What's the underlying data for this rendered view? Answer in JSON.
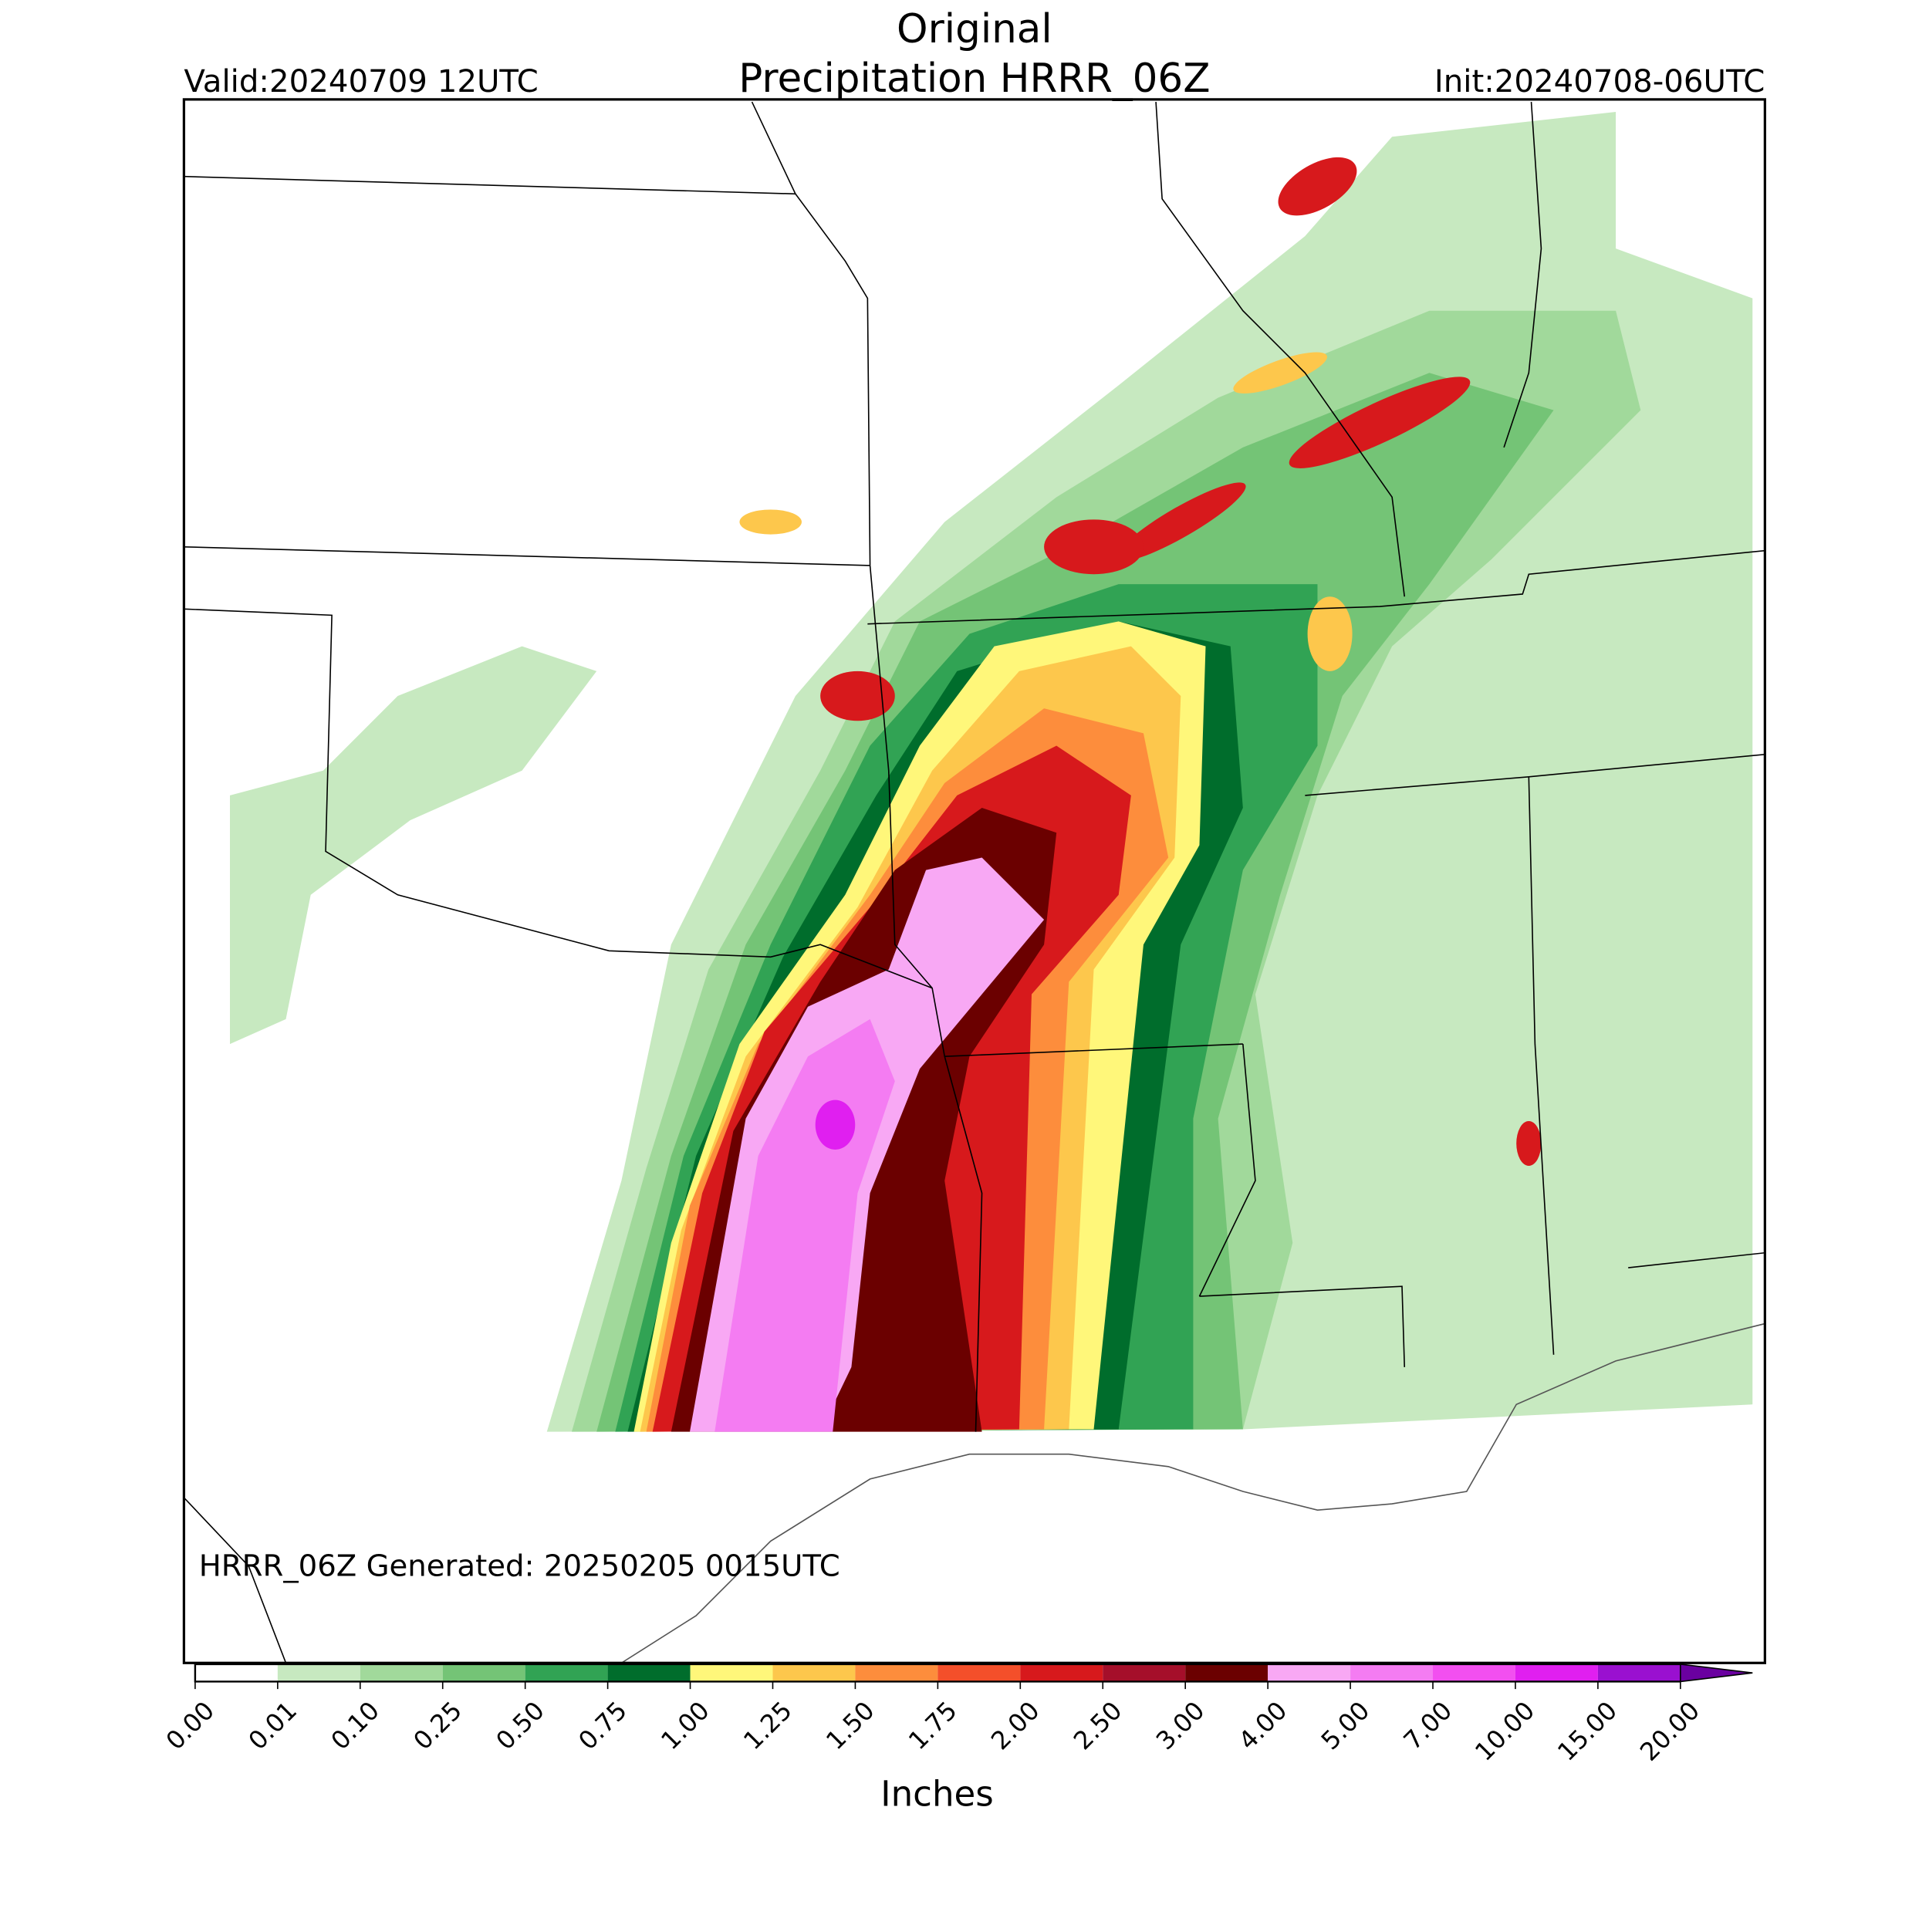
{
  "title": "Original",
  "subtitle": "Precipitation HRRR_06Z",
  "valid": "Valid:20240709 12UTC",
  "init": "Init:20240708-06UTC",
  "footer": "HRRR_06Z Generated: 20250205 0015UTC",
  "colorbar": {
    "label": "Inches",
    "ticks": [
      {
        "value": 0,
        "label": "0.00"
      },
      {
        "value": 0.01,
        "label": "0.01"
      },
      {
        "value": 0.1,
        "label": "0.10"
      },
      {
        "value": 0.25,
        "label": "0.25"
      },
      {
        "value": 0.5,
        "label": "0.50"
      },
      {
        "value": 0.75,
        "label": "0.75"
      },
      {
        "value": 1,
        "label": "1.00"
      },
      {
        "value": 1.25,
        "label": "1.25"
      },
      {
        "value": 1.5,
        "label": "1.50"
      },
      {
        "value": 1.75,
        "label": "1.75"
      },
      {
        "value": 2,
        "label": "2.00"
      },
      {
        "value": 2.5,
        "label": "2.50"
      },
      {
        "value": 3,
        "label": "3.00"
      },
      {
        "value": 4,
        "label": "4.00"
      },
      {
        "value": 5,
        "label": "5.00"
      },
      {
        "value": 7,
        "label": "7.00"
      },
      {
        "value": 10,
        "label": "10.00"
      },
      {
        "value": 15,
        "label": "15.00"
      },
      {
        "value": 20,
        "label": "20.00"
      }
    ],
    "colors": [
      "#ffffff",
      "#c7e9c0",
      "#a1d99b",
      "#74c476",
      "#31a354",
      "#006d2c",
      "#fff77a",
      "#fdc74c",
      "#fd8d3c",
      "#f44f2a",
      "#d7191c",
      "#a50f2a",
      "#6b0000",
      "#f8a8f4",
      "#f47cf2",
      "#f24ff0",
      "#e01ff0",
      "#9a10d0"
    ],
    "extend_color": "#6a00a0"
  }
}
